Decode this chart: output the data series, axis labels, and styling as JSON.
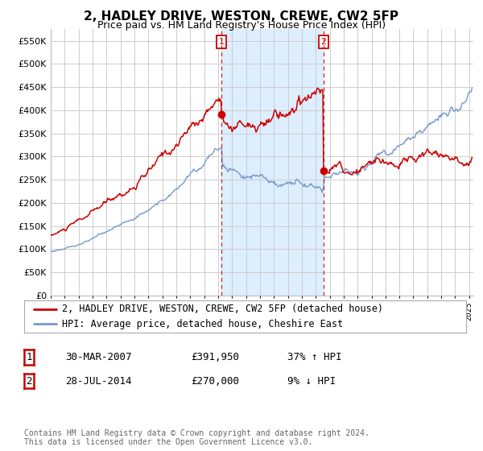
{
  "title": "2, HADLEY DRIVE, WESTON, CREWE, CW2 5FP",
  "subtitle": "Price paid vs. HM Land Registry's House Price Index (HPI)",
  "ytick_values": [
    0,
    50000,
    100000,
    150000,
    200000,
    250000,
    300000,
    350000,
    400000,
    450000,
    500000,
    550000
  ],
  "ylim": [
    0,
    575000
  ],
  "xlim_start": 1995.0,
  "xlim_end": 2025.3,
  "plot_bg_color": "#ffffff",
  "fig_bg_color": "#ffffff",
  "grid_color": "#cccccc",
  "highlight_color": "#ddeeff",
  "line1_color": "#cc0000",
  "line2_color": "#7799cc",
  "legend_label1": "2, HADLEY DRIVE, WESTON, CREWE, CW2 5FP (detached house)",
  "legend_label2": "HPI: Average price, detached house, Cheshire East",
  "sale1_date": 2007.24,
  "sale1_price": 391950,
  "sale2_date": 2014.57,
  "sale2_price": 270000,
  "table_rows": [
    {
      "num": "1",
      "date": "30-MAR-2007",
      "price": "£391,950",
      "hpi": "37% ↑ HPI"
    },
    {
      "num": "2",
      "date": "28-JUL-2014",
      "price": "£270,000",
      "hpi": "9% ↓ HPI"
    }
  ],
  "footer": "Contains HM Land Registry data © Crown copyright and database right 2024.\nThis data is licensed under the Open Government Licence v3.0.",
  "title_fontsize": 11,
  "subtitle_fontsize": 9,
  "tick_fontsize": 8,
  "legend_fontsize": 8.5,
  "table_fontsize": 9
}
